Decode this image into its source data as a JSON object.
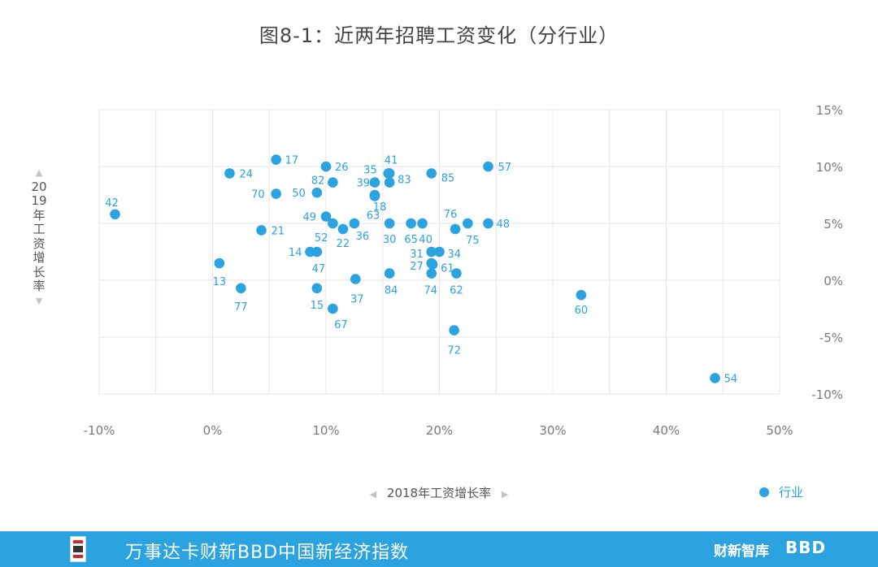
{
  "title": "图8-1：近两年招聘工资变化（分行业）",
  "x_axis_label": "2018年工资增长率",
  "y_axis_label": "2019年工资增长率",
  "legend_label": "行业",
  "footer": {
    "text": "万事达卡财新BBD中国新经济指数",
    "brand_caixin": "财新智库",
    "brand_bbd": "BBD"
  },
  "colors": {
    "point": "#2aa3e0",
    "grid": "#e6e6e6",
    "footer_bg": "#2aa3e0"
  },
  "chart_data": {
    "type": "scatter",
    "title": "图8-1：近两年招聘工资变化（分行业）",
    "xlabel": "2018年工资增长率",
    "ylabel": "2019年工资增长率",
    "xlim": [
      -10,
      50
    ],
    "ylim": [
      -10,
      15
    ],
    "x_ticks": [
      "-10%",
      "0%",
      "10%",
      "20%",
      "30%",
      "40%",
      "50%"
    ],
    "y_ticks": [
      "15%",
      "10%",
      "5%",
      "0%",
      "-5%",
      "-10%"
    ],
    "grid": true,
    "legend": "bottom-right",
    "series": [
      {
        "name": "行业",
        "points": [
          {
            "label": "42",
            "x": -8.6,
            "y": 5.8
          },
          {
            "label": "24",
            "x": 1.5,
            "y": 9.4
          },
          {
            "label": "13",
            "x": 0.6,
            "y": 1.5
          },
          {
            "label": "77",
            "x": 2.5,
            "y": -0.7
          },
          {
            "label": "17",
            "x": 5.6,
            "y": 10.6
          },
          {
            "label": "70",
            "x": 5.6,
            "y": 7.6
          },
          {
            "label": "21",
            "x": 4.3,
            "y": 4.4
          },
          {
            "label": "50",
            "x": 9.2,
            "y": 7.7
          },
          {
            "label": "82",
            "x": 10.6,
            "y": 8.6
          },
          {
            "label": "26",
            "x": 10.0,
            "y": 10.0
          },
          {
            "label": "49",
            "x": 10.0,
            "y": 5.6
          },
          {
            "label": "52",
            "x": 10.6,
            "y": 5.0
          },
          {
            "label": "22",
            "x": 11.5,
            "y": 4.5
          },
          {
            "label": "36",
            "x": 12.5,
            "y": 5.0
          },
          {
            "label": "14",
            "x": 8.6,
            "y": 2.5
          },
          {
            "label": "47",
            "x": 9.2,
            "y": 2.5
          },
          {
            "label": "15",
            "x": 9.2,
            "y": -0.7
          },
          {
            "label": "67",
            "x": 10.6,
            "y": -2.5
          },
          {
            "label": "37",
            "x": 12.6,
            "y": 0.1
          },
          {
            "label": "35",
            "x": 15.5,
            "y": 9.4
          },
          {
            "label": "39",
            "x": 14.3,
            "y": 8.6
          },
          {
            "label": "41",
            "x": 15.6,
            "y": 9.4
          },
          {
            "label": "83",
            "x": 15.6,
            "y": 8.6
          },
          {
            "label": "18",
            "x": 14.3,
            "y": 7.5
          },
          {
            "label": "63",
            "x": 14.3,
            "y": 7.4
          },
          {
            "label": "30",
            "x": 15.6,
            "y": 5.0
          },
          {
            "label": "65",
            "x": 17.5,
            "y": 5.0
          },
          {
            "label": "40",
            "x": 18.5,
            "y": 5.0
          },
          {
            "label": "84",
            "x": 15.6,
            "y": 0.6
          },
          {
            "label": "85",
            "x": 19.3,
            "y": 9.4
          },
          {
            "label": "31",
            "x": 19.3,
            "y": 2.5
          },
          {
            "label": "34",
            "x": 20.0,
            "y": 2.5
          },
          {
            "label": "27",
            "x": 19.3,
            "y": 1.5
          },
          {
            "label": "61",
            "x": 19.4,
            "y": 1.4
          },
          {
            "label": "74",
            "x": 19.3,
            "y": 0.6
          },
          {
            "label": "76",
            "x": 21.4,
            "y": 4.5
          },
          {
            "label": "75",
            "x": 22.5,
            "y": 5.0
          },
          {
            "label": "62",
            "x": 21.5,
            "y": 0.6
          },
          {
            "label": "72",
            "x": 21.3,
            "y": -4.4
          },
          {
            "label": "57",
            "x": 24.3,
            "y": 10.0
          },
          {
            "label": "48",
            "x": 24.3,
            "y": 5.0
          },
          {
            "label": "60",
            "x": 32.5,
            "y": -1.3
          },
          {
            "label": "54",
            "x": 44.3,
            "y": -8.6
          }
        ]
      }
    ]
  }
}
